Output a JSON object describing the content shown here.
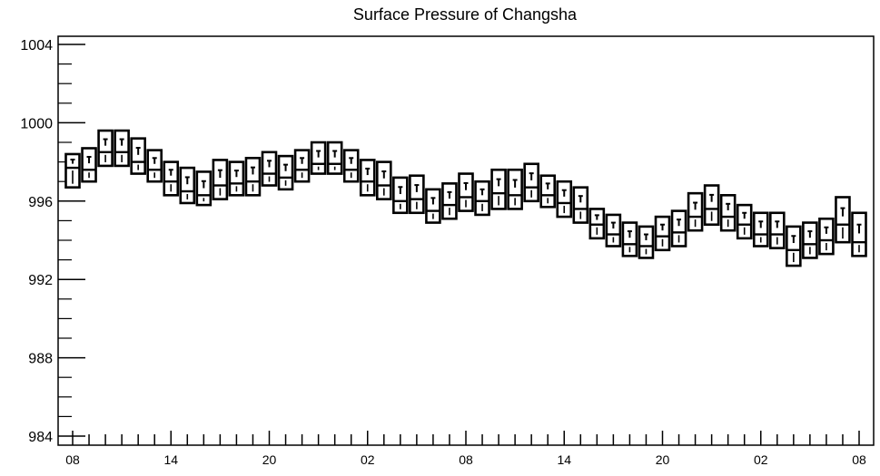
{
  "chart_data": {
    "type": "box",
    "title": "Surface Pressure of Changsha",
    "xlabel": "",
    "ylabel": "",
    "ylim": [
      984,
      1004
    ],
    "y_ticks": [
      "1004",
      "1000",
      "996",
      "992",
      "988",
      "984"
    ],
    "x_ticks": [
      "08",
      "14",
      "20",
      "02",
      "08",
      "14",
      "20",
      "02",
      "08"
    ],
    "x_range": [
      0,
      48
    ],
    "grid": false,
    "legend": "none",
    "series": [
      {
        "boxes": [
          {
            "x": 0,
            "q1": 996.7,
            "median": 997.7,
            "q3": 998.4,
            "max": 998.4
          },
          {
            "x": 1,
            "q1": 997.0,
            "median": 997.6,
            "q3": 998.7,
            "max": 998.7
          },
          {
            "x": 2,
            "q1": 997.8,
            "median": 998.5,
            "q3": 999.6,
            "max": 999.6
          },
          {
            "x": 3,
            "q1": 997.8,
            "median": 998.5,
            "q3": 999.6,
            "max": 999.6
          },
          {
            "x": 4,
            "q1": 997.4,
            "median": 998.0,
            "q3": 999.2,
            "max": 999.2
          },
          {
            "x": 5,
            "q1": 997.0,
            "median": 997.6,
            "q3": 998.6,
            "max": 998.6
          },
          {
            "x": 6,
            "q1": 996.3,
            "median": 997.0,
            "q3": 998.0,
            "max": 998.0
          },
          {
            "x": 7,
            "q1": 995.9,
            "median": 996.5,
            "q3": 997.7,
            "max": 997.7
          },
          {
            "x": 8,
            "q1": 995.8,
            "median": 996.3,
            "q3": 997.5,
            "max": 997.5
          },
          {
            "x": 9,
            "q1": 996.1,
            "median": 996.8,
            "q3": 998.1,
            "max": 998.1
          },
          {
            "x": 10,
            "q1": 996.3,
            "median": 996.9,
            "q3": 998.0,
            "max": 998.0
          },
          {
            "x": 11,
            "q1": 996.3,
            "median": 997.0,
            "q3": 998.2,
            "max": 998.2
          },
          {
            "x": 12,
            "q1": 996.8,
            "median": 997.4,
            "q3": 998.5,
            "max": 998.5
          },
          {
            "x": 13,
            "q1": 996.6,
            "median": 997.2,
            "q3": 998.3,
            "max": 998.3
          },
          {
            "x": 14,
            "q1": 997.0,
            "median": 997.6,
            "q3": 998.6,
            "max": 998.6
          },
          {
            "x": 15,
            "q1": 997.4,
            "median": 997.9,
            "q3": 999.0,
            "max": 999.0
          },
          {
            "x": 16,
            "q1": 997.4,
            "median": 997.9,
            "q3": 999.0,
            "max": 999.0
          },
          {
            "x": 17,
            "q1": 997.0,
            "median": 997.6,
            "q3": 998.6,
            "max": 998.6
          },
          {
            "x": 18,
            "q1": 996.3,
            "median": 997.0,
            "q3": 998.1,
            "max": 998.1
          },
          {
            "x": 19,
            "q1": 996.1,
            "median": 996.8,
            "q3": 998.0,
            "max": 998.0
          },
          {
            "x": 20,
            "q1": 995.4,
            "median": 996.0,
            "q3": 997.2,
            "max": 997.2
          },
          {
            "x": 21,
            "q1": 995.4,
            "median": 996.1,
            "q3": 997.3,
            "max": 997.3
          },
          {
            "x": 22,
            "q1": 994.9,
            "median": 995.5,
            "q3": 996.6,
            "max": 996.6
          },
          {
            "x": 23,
            "q1": 995.1,
            "median": 995.8,
            "q3": 996.9,
            "max": 996.9
          },
          {
            "x": 24,
            "q1": 995.5,
            "median": 996.2,
            "q3": 997.4,
            "max": 997.4
          },
          {
            "x": 25,
            "q1": 995.3,
            "median": 996.0,
            "q3": 997.0,
            "max": 997.0
          },
          {
            "x": 26,
            "q1": 995.6,
            "median": 996.4,
            "q3": 997.6,
            "max": 997.6
          },
          {
            "x": 27,
            "q1": 995.6,
            "median": 996.3,
            "q3": 997.6,
            "max": 997.6
          },
          {
            "x": 28,
            "q1": 996.0,
            "median": 996.7,
            "q3": 997.9,
            "max": 997.9
          },
          {
            "x": 29,
            "q1": 995.7,
            "median": 996.3,
            "q3": 997.3,
            "max": 997.3
          },
          {
            "x": 30,
            "q1": 995.2,
            "median": 995.9,
            "q3": 997.0,
            "max": 997.0
          },
          {
            "x": 31,
            "q1": 994.9,
            "median": 995.6,
            "q3": 996.7,
            "max": 996.7
          },
          {
            "x": 32,
            "q1": 994.1,
            "median": 994.8,
            "q3": 995.6,
            "max": 995.6
          },
          {
            "x": 33,
            "q1": 993.7,
            "median": 994.3,
            "q3": 995.3,
            "max": 995.3
          },
          {
            "x": 34,
            "q1": 993.2,
            "median": 993.8,
            "q3": 994.9,
            "max": 994.9
          },
          {
            "x": 35,
            "q1": 993.1,
            "median": 993.7,
            "q3": 994.7,
            "max": 994.7
          },
          {
            "x": 36,
            "q1": 993.5,
            "median": 994.2,
            "q3": 995.2,
            "max": 995.2
          },
          {
            "x": 37,
            "q1": 993.7,
            "median": 994.4,
            "q3": 995.5,
            "max": 995.5
          },
          {
            "x": 38,
            "q1": 994.5,
            "median": 995.2,
            "q3": 996.4,
            "max": 996.4
          },
          {
            "x": 39,
            "q1": 994.8,
            "median": 995.6,
            "q3": 996.8,
            "max": 996.8
          },
          {
            "x": 40,
            "q1": 994.5,
            "median": 995.2,
            "q3": 996.3,
            "max": 996.3
          },
          {
            "x": 41,
            "q1": 994.1,
            "median": 994.8,
            "q3": 995.8,
            "max": 995.8
          },
          {
            "x": 42,
            "q1": 993.7,
            "median": 994.3,
            "q3": 995.4,
            "max": 995.4
          },
          {
            "x": 43,
            "q1": 993.6,
            "median": 994.3,
            "q3": 995.4,
            "max": 995.4
          },
          {
            "x": 44,
            "q1": 992.7,
            "median": 993.5,
            "q3": 994.7,
            "max": 994.7
          },
          {
            "x": 45,
            "q1": 993.1,
            "median": 993.8,
            "q3": 994.9,
            "max": 994.9
          },
          {
            "x": 46,
            "q1": 993.3,
            "median": 994.0,
            "q3": 995.1,
            "max": 995.1
          },
          {
            "x": 47,
            "q1": 993.9,
            "median": 994.8,
            "q3": 996.2,
            "max": 996.2
          },
          {
            "x": 48,
            "q1": 993.2,
            "median": 993.9,
            "q3": 995.4,
            "max": 995.4
          }
        ]
      }
    ]
  }
}
